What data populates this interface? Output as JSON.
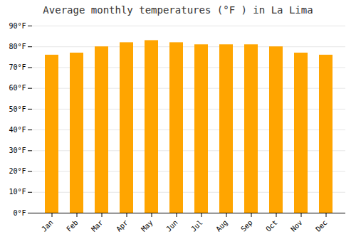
{
  "chart_data": {
    "type": "bar",
    "title": "Average monthly temperatures (°F ) in La Lima",
    "categories": [
      "Jan",
      "Feb",
      "Mar",
      "Apr",
      "May",
      "Jun",
      "Jul",
      "Aug",
      "Sep",
      "Oct",
      "Nov",
      "Dec"
    ],
    "values": [
      76,
      77,
      80,
      82,
      83,
      82,
      81,
      81,
      81,
      80,
      77,
      76
    ],
    "color": "#FFA500",
    "ylim": [
      0,
      90
    ],
    "yticks": [
      {
        "value": 0,
        "label": "0°F"
      },
      {
        "value": 10,
        "label": "10°F"
      },
      {
        "value": 20,
        "label": "20°F"
      },
      {
        "value": 30,
        "label": "30°F"
      },
      {
        "value": 40,
        "label": "40°F"
      },
      {
        "value": 50,
        "label": "50°F"
      },
      {
        "value": 60,
        "label": "60°F"
      },
      {
        "value": 70,
        "label": "70°F"
      },
      {
        "value": 80,
        "label": "80°F"
      },
      {
        "value": 90,
        "label": "90°F"
      }
    ],
    "grid": true
  }
}
